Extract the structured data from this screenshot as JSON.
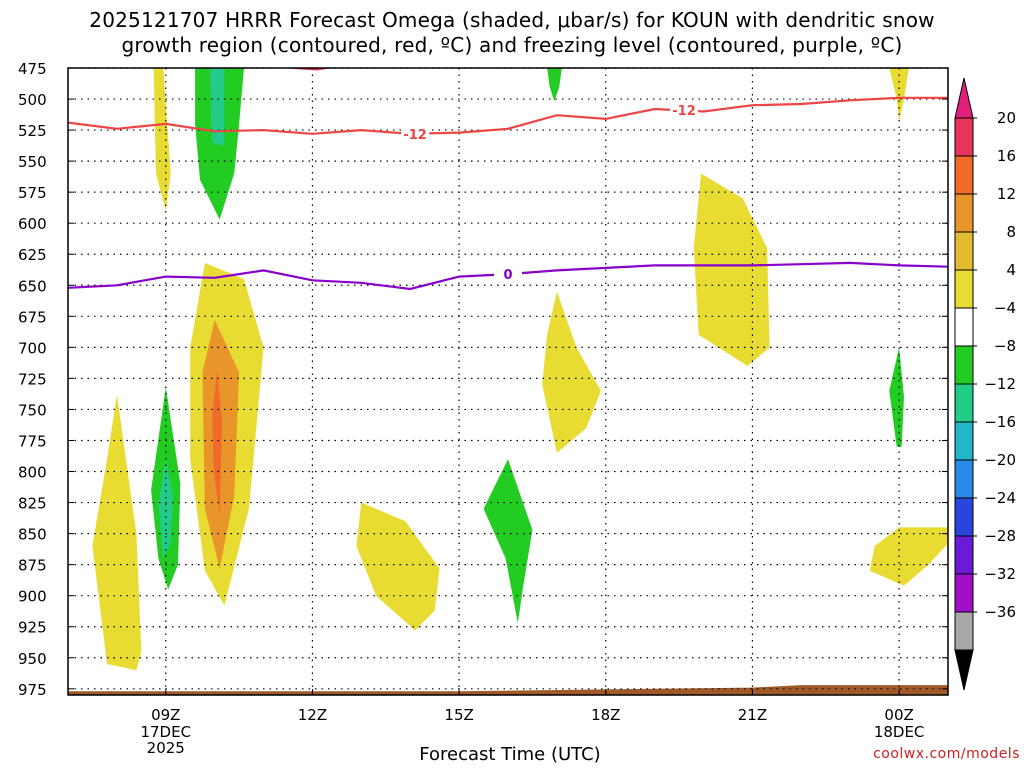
{
  "chart_data": {
    "type": "contour-cross-section",
    "title_line1": "2025121707 HRRR Forecast Omega (shaded, μbar/s) for KOUN with dendritic snow",
    "title_line2": "growth region (contoured, red, ºC) and freezing level (contoured, purple, ºC)",
    "xlabel": "Forecast Time (UTC)",
    "credit": "coolwx.com/models",
    "x_range_hours": [
      7,
      25
    ],
    "y_range_hpa": [
      475,
      980
    ],
    "y_ticks": [
      475,
      500,
      525,
      550,
      575,
      600,
      625,
      650,
      675,
      700,
      725,
      750,
      775,
      800,
      825,
      850,
      875,
      900,
      925,
      950,
      975
    ],
    "x_ticks": [
      {
        "hour": 9,
        "label": "09Z",
        "sub1": "17DEC",
        "sub2": "2025"
      },
      {
        "hour": 12,
        "label": "12Z",
        "sub1": "",
        "sub2": ""
      },
      {
        "hour": 15,
        "label": "15Z",
        "sub1": "",
        "sub2": ""
      },
      {
        "hour": 18,
        "label": "18Z",
        "sub1": "",
        "sub2": ""
      },
      {
        "hour": 21,
        "label": "21Z",
        "sub1": "",
        "sub2": ""
      },
      {
        "hour": 24,
        "label": "00Z",
        "sub1": "18DEC",
        "sub2": ""
      }
    ],
    "colorbar": {
      "labels": [
        "20",
        "16",
        "12",
        "8",
        "4",
        "−4",
        "−8",
        "−12",
        "−16",
        "−20",
        "−24",
        "−28",
        "−32",
        "−36"
      ],
      "colors": [
        "#e8335a",
        "#f06a2a",
        "#e8962a",
        "#e3bb2e",
        "#e8dc33",
        "#ffffff",
        "#22cc22",
        "#22cc88",
        "#22b8c8",
        "#2a8ae8",
        "#2a44e0",
        "#6a1ad8",
        "#a010c8",
        "#a8a8a8"
      ],
      "top_arrow_color": "#e0207a",
      "bottom_arrow_color": "#000000"
    },
    "dgz_line": {
      "color": "#ee4444",
      "label": "-12",
      "points": [
        [
          7,
          519
        ],
        [
          8,
          524
        ],
        [
          9,
          520
        ],
        [
          10,
          526
        ],
        [
          11,
          525
        ],
        [
          12,
          528
        ],
        [
          13,
          525
        ],
        [
          14,
          528
        ],
        [
          15,
          527
        ],
        [
          16,
          524
        ],
        [
          17,
          513
        ],
        [
          18,
          516
        ],
        [
          19,
          508
        ],
        [
          20,
          510
        ],
        [
          21,
          505
        ],
        [
          22,
          504
        ],
        [
          23,
          501
        ],
        [
          24,
          499
        ],
        [
          25,
          499
        ]
      ]
    },
    "freezing_line": {
      "color": "#8800cc",
      "label": "0",
      "points": [
        [
          7,
          652
        ],
        [
          8,
          650
        ],
        [
          9,
          643
        ],
        [
          10,
          644
        ],
        [
          10.5,
          641
        ],
        [
          11,
          638
        ],
        [
          12,
          646
        ],
        [
          13,
          648
        ],
        [
          14,
          653
        ],
        [
          15,
          643
        ],
        [
          16,
          641
        ],
        [
          17,
          638
        ],
        [
          18,
          636
        ],
        [
          19,
          634
        ],
        [
          20,
          634
        ],
        [
          21,
          634
        ],
        [
          22,
          633
        ],
        [
          23,
          632
        ],
        [
          24,
          634
        ],
        [
          25,
          635
        ]
      ]
    },
    "omega_regions": [
      {
        "name": "yellow-upper-left",
        "level": "4",
        "color": "#e8dc33",
        "points": [
          [
            8.75,
            475
          ],
          [
            8.95,
            475
          ],
          [
            9.1,
            560
          ],
          [
            9,
            590
          ],
          [
            8.8,
            560
          ]
        ]
      },
      {
        "name": "green-upper-jet",
        "level": "-4",
        "color": "#22cc22",
        "points": [
          [
            9.6,
            475
          ],
          [
            10.6,
            475
          ],
          [
            10.5,
            520
          ],
          [
            10.4,
            560
          ],
          [
            10.1,
            597
          ],
          [
            9.7,
            565
          ],
          [
            9.6,
            520
          ]
        ]
      },
      {
        "name": "teal-upper-jet",
        "level": "-8",
        "color": "#22cc88",
        "points": [
          [
            9.9,
            475
          ],
          [
            10.2,
            475
          ],
          [
            10.2,
            535
          ],
          [
            10.15,
            538
          ],
          [
            9.95,
            535
          ]
        ]
      },
      {
        "name": "red-top-sliver",
        "level": "20",
        "color": "#e8335a",
        "points": [
          [
            11.4,
            475
          ],
          [
            12.4,
            475
          ],
          [
            12.1,
            477
          ],
          [
            11.7,
            476
          ]
        ]
      },
      {
        "name": "green-upper-mid",
        "level": "-4",
        "color": "#22cc22",
        "points": [
          [
            16.8,
            475
          ],
          [
            17.1,
            475
          ],
          [
            17.05,
            490
          ],
          [
            16.95,
            502
          ],
          [
            16.85,
            490
          ]
        ]
      },
      {
        "name": "yellow-upper-right",
        "level": "4",
        "color": "#e8dc33",
        "points": [
          [
            23.8,
            475
          ],
          [
            24.2,
            475
          ],
          [
            24.1,
            500
          ],
          [
            24.0,
            518
          ],
          [
            23.95,
            500
          ]
        ]
      },
      {
        "name": "yellow-mid-right",
        "level": "4",
        "color": "#e8dc33",
        "points": [
          [
            19.95,
            560
          ],
          [
            20.8,
            580
          ],
          [
            21.3,
            620
          ],
          [
            21.35,
            700
          ],
          [
            20.9,
            715
          ],
          [
            19.9,
            690
          ],
          [
            19.8,
            620
          ]
        ]
      },
      {
        "name": "yellow-lowlevel-left",
        "level": "4",
        "color": "#e8dc33",
        "points": [
          [
            8.0,
            738
          ],
          [
            8.4,
            850
          ],
          [
            8.5,
            945
          ],
          [
            8.4,
            960
          ],
          [
            7.8,
            955
          ],
          [
            7.5,
            860
          ],
          [
            7.8,
            790
          ]
        ]
      },
      {
        "name": "green-lowlevel-left",
        "level": "-4",
        "color": "#22cc22",
        "points": [
          [
            9.0,
            732
          ],
          [
            9.3,
            810
          ],
          [
            9.25,
            875
          ],
          [
            9.05,
            895
          ],
          [
            8.85,
            870
          ],
          [
            8.7,
            815
          ]
        ]
      },
      {
        "name": "teal-lowlevel-left",
        "level": "-8",
        "color": "#22cc88",
        "points": [
          [
            9.0,
            790
          ],
          [
            9.15,
            820
          ],
          [
            9.1,
            858
          ],
          [
            8.95,
            870
          ],
          [
            8.85,
            825
          ]
        ]
      },
      {
        "name": "yellow-main-plume",
        "level": "4",
        "color": "#e8dc33",
        "points": [
          [
            9.8,
            632
          ],
          [
            10.6,
            645
          ],
          [
            11.0,
            700
          ],
          [
            10.7,
            830
          ],
          [
            10.2,
            908
          ],
          [
            9.8,
            880
          ],
          [
            9.5,
            790
          ],
          [
            9.5,
            700
          ]
        ]
      },
      {
        "name": "orange-main-plume",
        "level": "8",
        "color": "#e8962a",
        "points": [
          [
            10.0,
            678
          ],
          [
            10.5,
            720
          ],
          [
            10.4,
            820
          ],
          [
            10.1,
            878
          ],
          [
            9.8,
            830
          ],
          [
            9.75,
            720
          ]
        ]
      },
      {
        "name": "orange-core",
        "level": "12",
        "color": "#f06a2a",
        "points": [
          [
            10.05,
            718
          ],
          [
            10.15,
            760
          ],
          [
            10.1,
            835
          ],
          [
            9.98,
            800
          ],
          [
            9.95,
            755
          ]
        ]
      },
      {
        "name": "yellow-low-center",
        "level": "4",
        "color": "#e8dc33",
        "points": [
          [
            13.0,
            825
          ],
          [
            13.9,
            840
          ],
          [
            14.6,
            878
          ],
          [
            14.5,
            912
          ],
          [
            14.1,
            928
          ],
          [
            13.3,
            900
          ],
          [
            12.9,
            860
          ]
        ]
      },
      {
        "name": "green-low-center",
        "level": "-4",
        "color": "#22cc22",
        "points": [
          [
            16.0,
            790
          ],
          [
            16.5,
            847
          ],
          [
            16.3,
            895
          ],
          [
            16.2,
            922
          ],
          [
            15.95,
            870
          ],
          [
            15.5,
            830
          ]
        ]
      },
      {
        "name": "yellow-mid-center",
        "level": "4",
        "color": "#e8dc33",
        "points": [
          [
            17.0,
            655
          ],
          [
            17.4,
            700
          ],
          [
            17.9,
            735
          ],
          [
            17.6,
            765
          ],
          [
            17.0,
            785
          ],
          [
            16.7,
            730
          ],
          [
            16.8,
            690
          ]
        ]
      },
      {
        "name": "green-low-right",
        "level": "-4",
        "color": "#22cc22",
        "points": [
          [
            24.0,
            700
          ],
          [
            24.1,
            740
          ],
          [
            24.05,
            780
          ],
          [
            23.95,
            780
          ],
          [
            23.8,
            735
          ]
        ]
      },
      {
        "name": "yellow-low-right",
        "level": "4",
        "color": "#e8dc33",
        "points": [
          [
            24.0,
            845
          ],
          [
            25.0,
            845
          ],
          [
            25.0,
            858
          ],
          [
            24.6,
            875
          ],
          [
            24.1,
            892
          ],
          [
            23.4,
            880
          ],
          [
            23.5,
            860
          ]
        ]
      }
    ],
    "ground": {
      "color": "#a05a2a",
      "points": [
        [
          7,
          977
        ],
        [
          11,
          977
        ],
        [
          15,
          977
        ],
        [
          19,
          975
        ],
        [
          21,
          974
        ],
        [
          22,
          972
        ],
        [
          25,
          972
        ]
      ]
    }
  }
}
